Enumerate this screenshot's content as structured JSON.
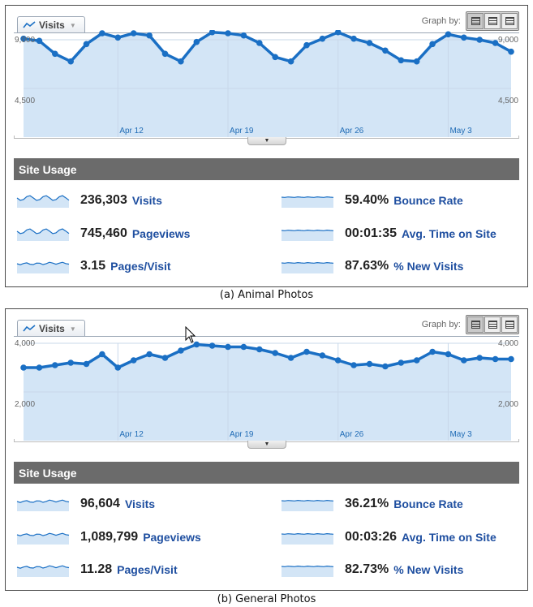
{
  "colors": {
    "line": "#1a6fc4",
    "fill": "#d3e5f6",
    "grid": "#c8d8ea",
    "header": "#6b6b6b",
    "label": "#1f4fa0"
  },
  "panels": [
    {
      "id": "a",
      "caption": "(a)  Animal  Photos",
      "tab_label": "Visits",
      "graph_by_label": "Graph by:",
      "y_top_label": "9,000",
      "y_mid_label": "4,500",
      "y_max": 9000,
      "x_labels": [
        "Apr 12",
        "Apr 19",
        "Apr 26",
        "May 3"
      ],
      "series": [
        9100,
        8900,
        7700,
        7000,
        8600,
        9600,
        9200,
        9600,
        9400,
        7700,
        7000,
        8800,
        9700,
        9600,
        9400,
        8700,
        7400,
        7000,
        8500,
        9100,
        9700,
        9100,
        8700,
        8000,
        7100,
        7000,
        8600,
        9500,
        9200,
        9000,
        8700,
        7900
      ],
      "section_title": "Site Usage",
      "metrics": [
        {
          "value": "236,303",
          "label": "Visits",
          "spark": "wavy"
        },
        {
          "value": "59.40%",
          "label": "Bounce Rate",
          "spark": "flat"
        },
        {
          "value": "745,460",
          "label": "Pageviews",
          "spark": "wavy"
        },
        {
          "value": "00:01:35",
          "label": "Avg. Time on Site",
          "spark": "flat"
        },
        {
          "value": "3.15",
          "label": "Pages/Visit",
          "spark": "slight"
        },
        {
          "value": "87.63%",
          "label": "% New Visits",
          "spark": "flat"
        }
      ]
    },
    {
      "id": "b",
      "caption": "(b)  General  Photos",
      "tab_label": "Visits",
      "graph_by_label": "Graph by:",
      "y_top_label": "4,000",
      "y_mid_label": "2,000",
      "y_max": 4000,
      "x_labels": [
        "Apr 12",
        "Apr 19",
        "Apr 26",
        "May 3"
      ],
      "series": [
        3000,
        3000,
        3100,
        3200,
        3150,
        3550,
        3000,
        3300,
        3550,
        3400,
        3700,
        3950,
        3900,
        3850,
        3850,
        3750,
        3600,
        3400,
        3650,
        3500,
        3300,
        3100,
        3150,
        3050,
        3200,
        3300,
        3650,
        3550,
        3300,
        3400,
        3350,
        3350
      ],
      "section_title": "Site Usage",
      "metrics": [
        {
          "value": "96,604",
          "label": "Visits",
          "spark": "slight"
        },
        {
          "value": "36.21%",
          "label": "Bounce Rate",
          "spark": "flat"
        },
        {
          "value": "1,089,799",
          "label": "Pageviews",
          "spark": "slight"
        },
        {
          "value": "00:03:26",
          "label": "Avg. Time on Site",
          "spark": "flat"
        },
        {
          "value": "11.28",
          "label": "Pages/Visit",
          "spark": "slight"
        },
        {
          "value": "82.73%",
          "label": "% New Visits",
          "spark": "flat"
        }
      ]
    }
  ]
}
